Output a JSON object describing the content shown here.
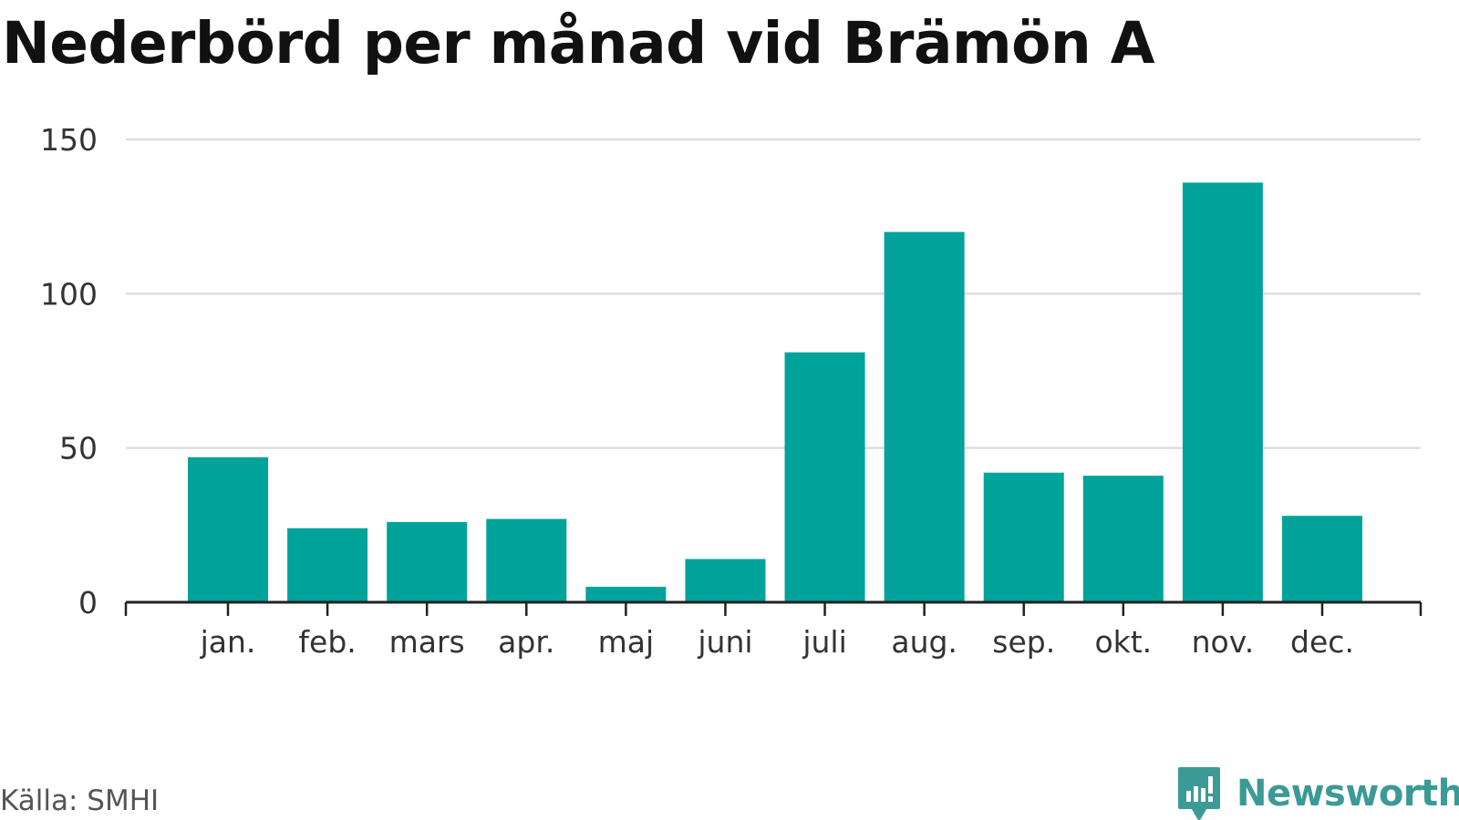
{
  "header": {
    "title": "Nederbörd per månad vid Brämön A"
  },
  "chart_data": {
    "type": "bar",
    "title": "Nederbörd per månad vid Brämön A",
    "xlabel": "",
    "ylabel": "",
    "categories": [
      "jan.",
      "feb.",
      "mars",
      "apr.",
      "maj",
      "juni",
      "juli",
      "aug.",
      "sep.",
      "okt.",
      "nov.",
      "dec."
    ],
    "values": [
      47,
      24,
      26,
      27,
      5,
      14,
      81,
      120,
      42,
      41,
      136,
      28
    ],
    "ylim": [
      0,
      150
    ],
    "yticks": [
      0,
      50,
      100,
      150
    ],
    "grid": true,
    "legend": "none",
    "bar_color": "#00a39a",
    "grid_color": "#dddddd",
    "axis_color": "#222222"
  },
  "footer": {
    "source": "Källa: SMHI",
    "brand": "Newsworthy",
    "brand_icon": "newsworthy-logo-icon",
    "brand_color": "#3b9a96"
  }
}
